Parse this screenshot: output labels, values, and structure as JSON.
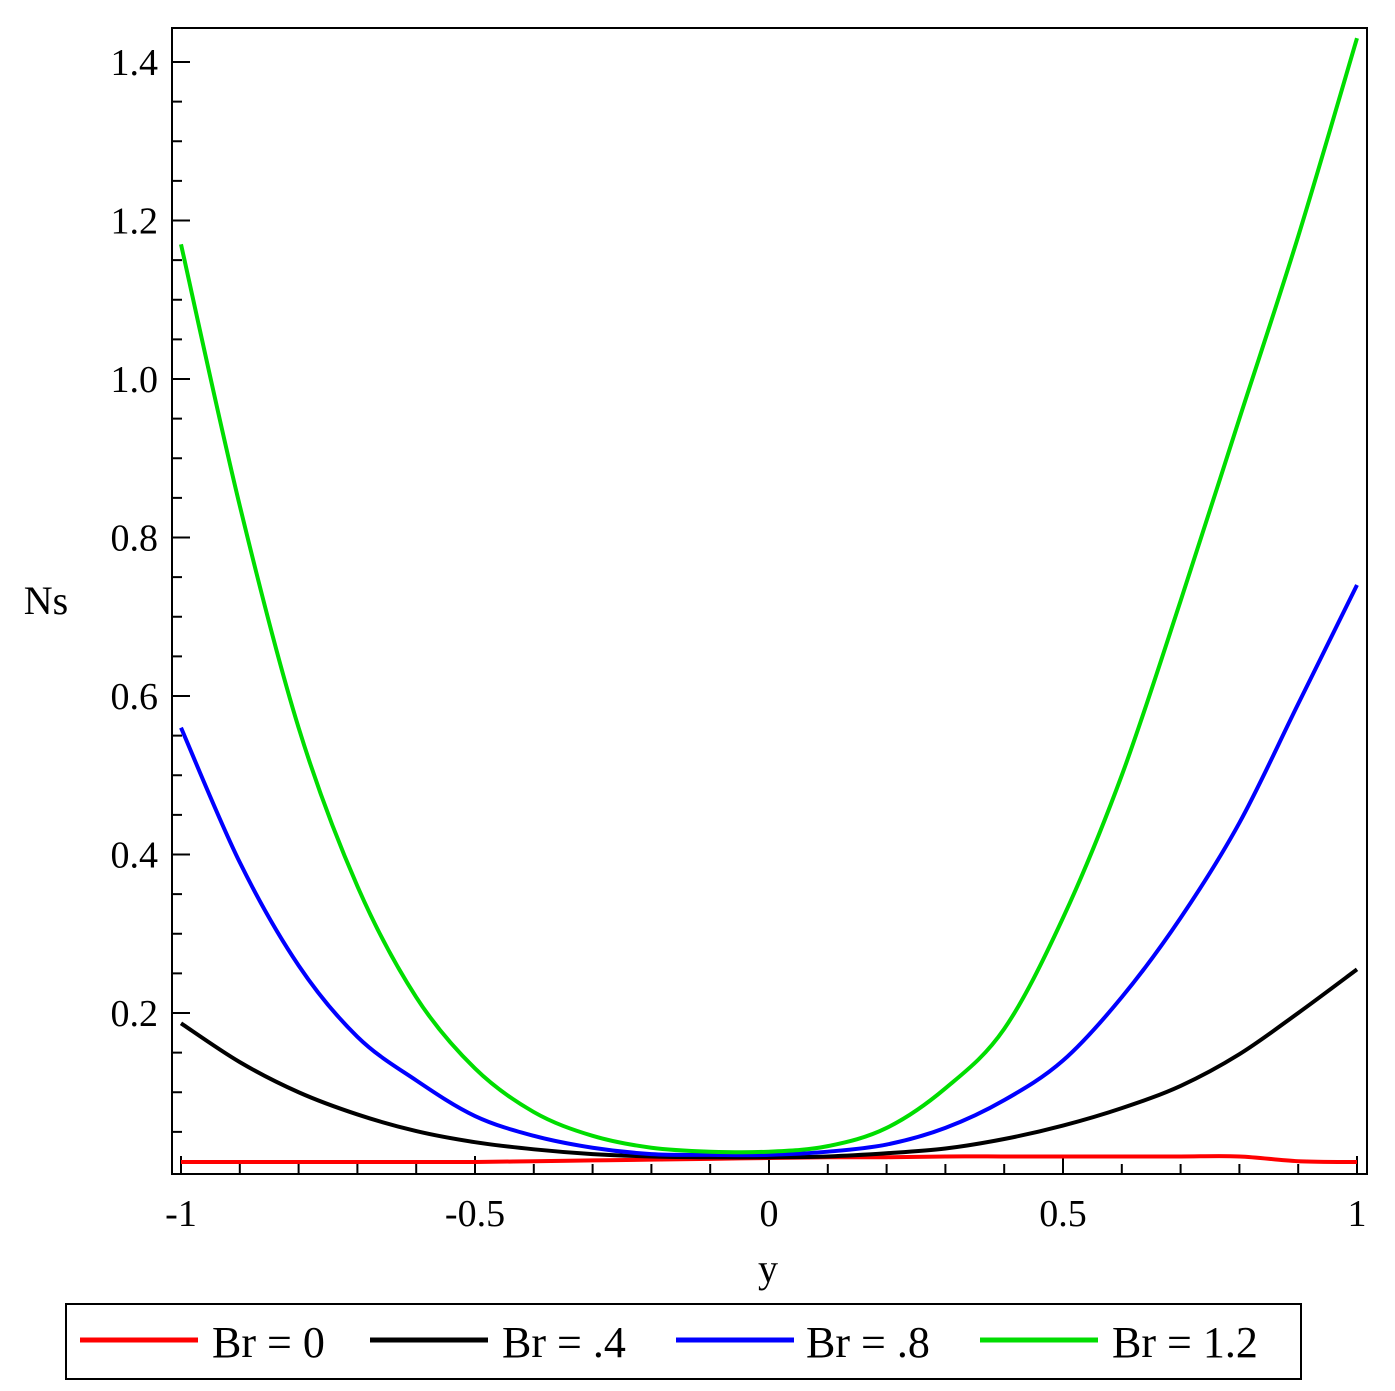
{
  "chart_data": {
    "type": "line",
    "xlabel": "y",
    "ylabel": "Ns",
    "xlim": [
      -1,
      1
    ],
    "ylim": [
      0,
      1.43
    ],
    "x_ticks": [
      "-1",
      "-0.5",
      "0",
      "0.5",
      "1"
    ],
    "y_ticks": [
      "0.2",
      "0.4",
      "0.6",
      "0.8",
      "1.0",
      "1.2",
      "1.4"
    ],
    "grid": false,
    "legend_position": "bottom",
    "x": [
      -1.0,
      -0.9,
      -0.8,
      -0.7,
      -0.6,
      -0.5,
      -0.4,
      -0.3,
      -0.2,
      -0.1,
      0.0,
      0.1,
      0.2,
      0.3,
      0.4,
      0.5,
      0.6,
      0.7,
      0.8,
      0.9,
      1.0
    ],
    "series": [
      {
        "name": "Br = 0",
        "color": "#ff0000",
        "values": [
          0.012,
          0.012,
          0.012,
          0.012,
          0.012,
          0.012,
          0.013,
          0.014,
          0.015,
          0.016,
          0.017,
          0.018,
          0.018,
          0.019,
          0.019,
          0.019,
          0.019,
          0.019,
          0.019,
          0.013,
          0.012
        ]
      },
      {
        "name": "Br = .4",
        "color": "#000000",
        "values": [
          0.187,
          0.138,
          0.1,
          0.072,
          0.051,
          0.037,
          0.028,
          0.022,
          0.019,
          0.018,
          0.018,
          0.019,
          0.023,
          0.029,
          0.041,
          0.058,
          0.08,
          0.108,
          0.148,
          0.2,
          0.255
        ]
      },
      {
        "name": "Br = .8",
        "color": "#0000ff",
        "values": [
          0.56,
          0.39,
          0.26,
          0.17,
          0.115,
          0.07,
          0.045,
          0.03,
          0.022,
          0.021,
          0.021,
          0.025,
          0.034,
          0.055,
          0.09,
          0.14,
          0.22,
          0.32,
          0.44,
          0.59,
          0.74
        ]
      },
      {
        "name": "Br = 1.2",
        "color": "#00dd00",
        "values": [
          1.17,
          0.84,
          0.56,
          0.36,
          0.22,
          0.13,
          0.075,
          0.045,
          0.03,
          0.025,
          0.025,
          0.032,
          0.055,
          0.105,
          0.18,
          0.32,
          0.5,
          0.72,
          0.95,
          1.18,
          1.43
        ]
      }
    ]
  }
}
